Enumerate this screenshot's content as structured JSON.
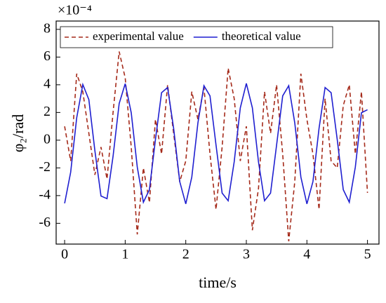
{
  "chart_data": {
    "type": "line",
    "xlabel": "time/s",
    "ylabel": "φ₂/rad",
    "multiplier": "×10⁻⁴",
    "x": [
      0,
      0.1,
      0.2,
      0.3,
      0.4,
      0.5,
      0.6,
      0.7,
      0.8,
      0.9,
      1,
      1.1,
      1.2,
      1.3,
      1.4,
      1.5,
      1.6,
      1.7,
      1.8,
      1.9,
      2,
      2.1,
      2.2,
      2.3,
      2.4,
      2.5,
      2.6,
      2.7,
      2.8,
      2.9,
      3,
      3.1,
      3.2,
      3.3,
      3.4,
      3.5,
      3.6,
      3.7,
      3.8,
      3.9,
      4,
      4.1,
      4.2,
      4.3,
      4.4,
      4.5,
      4.6,
      4.7,
      4.8,
      4.9,
      5
    ],
    "series": [
      {
        "name": "experimental value",
        "color": "#a52a1a",
        "dash": true,
        "values": [
          1.0,
          -1.5,
          4.8,
          3.5,
          0.5,
          -2.5,
          -0.5,
          -2.8,
          2.0,
          6.4,
          4.5,
          -0.5,
          -6.8,
          -2.0,
          -4.5,
          1.5,
          -1.0,
          4.0,
          0.5,
          -3.0,
          -1.5,
          3.5,
          1.5,
          3.8,
          -1.0,
          -5.0,
          -0.5,
          5.2,
          3.0,
          -1.5,
          1.0,
          -6.5,
          -3.5,
          3.5,
          0.5,
          4.0,
          -1.0,
          -7.3,
          -3.0,
          4.8,
          1.5,
          -1.0,
          -5.0,
          3.0,
          -1.5,
          -2.0,
          2.5,
          4.0,
          -1.0,
          3.5,
          -3.8
        ]
      },
      {
        "name": "theoretical value",
        "color": "#1f1fd0",
        "dash": false,
        "values": [
          -4.56,
          -2.31,
          1.62,
          4.02,
          2.93,
          -0.76,
          -4.03,
          -4.22,
          -1.16,
          2.64,
          4.08,
          1.98,
          -1.94,
          -4.48,
          -3.57,
          0.05,
          3.43,
          3.8,
          0.86,
          -2.99,
          -4.6,
          -2.66,
          1.25,
          3.93,
          3.2,
          -0.35,
          -3.82,
          -4.37,
          -1.56,
          2.33,
          4.1,
          2.33,
          -1.56,
          -4.37,
          -3.82,
          -0.35,
          3.2,
          3.93,
          1.25,
          -2.66,
          -4.6,
          -2.99,
          0.86,
          3.8,
          3.43,
          0.05,
          -3.57,
          -4.48,
          -1.94,
          1.98,
          2.2
        ]
      }
    ],
    "xlim": [
      -0.14,
      5.19
    ],
    "ylim": [
      -7.5,
      8.6
    ],
    "xticks": [
      0,
      1,
      2,
      3,
      4,
      5
    ],
    "yticks": [
      -6,
      -4,
      -2,
      0,
      2,
      4,
      6,
      8
    ]
  }
}
